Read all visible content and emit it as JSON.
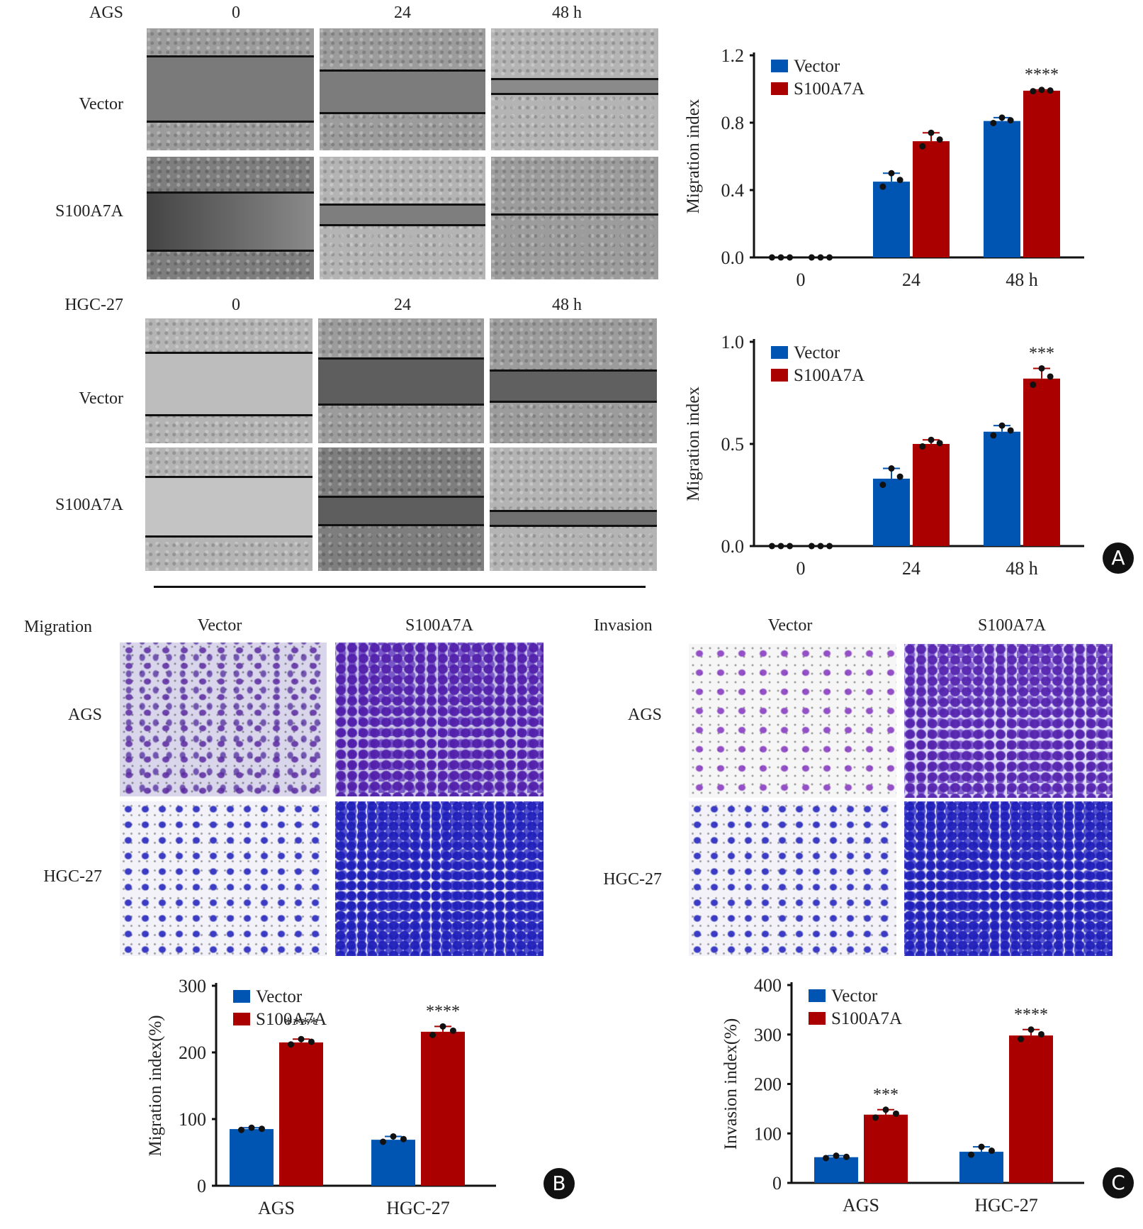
{
  "colors": {
    "vector": "#0055b3",
    "s100a7a": "#aa0000",
    "axis": "#111111",
    "dot": "#111111"
  },
  "panel_a": {
    "badge": "A",
    "ags": {
      "cell_line": "AGS",
      "time_labels": [
        "0",
        "24",
        "48 h"
      ],
      "row_labels": [
        "Vector",
        "S100A7A"
      ]
    },
    "hgc27": {
      "cell_line": "HGC-27",
      "time_labels": [
        "0",
        "24",
        "48 h"
      ],
      "row_labels": [
        "Vector",
        "S100A7A"
      ]
    }
  },
  "panel_b": {
    "badge": "B",
    "title": "Migration",
    "col_labels": [
      "Vector",
      "S100A7A"
    ],
    "row_labels": [
      "AGS",
      "HGC-27"
    ]
  },
  "panel_c": {
    "badge": "C",
    "title": "Invasion",
    "col_labels": [
      "Vector",
      "S100A7A"
    ],
    "row_labels": [
      "AGS",
      "HGC-27"
    ]
  },
  "chart_data": [
    {
      "id": "a_ags",
      "type": "bar",
      "title": "",
      "xlabel": "",
      "ylabel": "Migration index",
      "categories": [
        "0",
        "24",
        "48 h"
      ],
      "ylim": [
        0,
        1.2
      ],
      "yticks": [
        "0.0",
        "0.4",
        "0.8",
        "1.2"
      ],
      "ytick_values": [
        0,
        0.4,
        0.8,
        1.2
      ],
      "legend": [
        "Vector",
        "S100A7A"
      ],
      "legend_position": "top-left",
      "series": [
        {
          "name": "Vector",
          "values": [
            0,
            0.45,
            0.81
          ],
          "errors": [
            0,
            0.05,
            0.02
          ]
        },
        {
          "name": "S100A7A",
          "values": [
            0,
            0.69,
            0.99
          ],
          "errors": [
            0,
            0.05,
            0.005
          ]
        }
      ],
      "annotations": [
        {
          "category": "48 h",
          "series": "S100A7A",
          "text": "****"
        }
      ]
    },
    {
      "id": "a_hgc",
      "type": "bar",
      "title": "",
      "xlabel": "",
      "ylabel": "Migration index",
      "categories": [
        "0",
        "24",
        "48 h"
      ],
      "ylim": [
        0,
        1.0
      ],
      "yticks": [
        "0.0",
        "0.5",
        "1.0"
      ],
      "ytick_values": [
        0,
        0.5,
        1.0
      ],
      "legend": [
        "Vector",
        "S100A7A"
      ],
      "legend_position": "top-left",
      "series": [
        {
          "name": "Vector",
          "values": [
            0,
            0.33,
            0.56
          ],
          "errors": [
            0,
            0.05,
            0.03
          ]
        },
        {
          "name": "S100A7A",
          "values": [
            0,
            0.5,
            0.82
          ],
          "errors": [
            0,
            0.02,
            0.05
          ]
        }
      ],
      "annotations": [
        {
          "category": "48 h",
          "series": "S100A7A",
          "text": "***"
        }
      ]
    },
    {
      "id": "b",
      "type": "bar",
      "title": "",
      "xlabel": "",
      "ylabel": "Migration index(%)",
      "categories": [
        "AGS",
        "HGC-27"
      ],
      "ylim": [
        0,
        300
      ],
      "yticks": [
        "0",
        "100",
        "200",
        "300"
      ],
      "ytick_values": [
        0,
        100,
        200,
        300
      ],
      "legend": [
        "Vector",
        "S100A7A"
      ],
      "legend_position": "top-left",
      "series": [
        {
          "name": "Vector",
          "values": [
            85,
            69
          ],
          "errors": [
            2,
            5
          ]
        },
        {
          "name": "S100A7A",
          "values": [
            215,
            231
          ],
          "errors": [
            5,
            8
          ]
        }
      ],
      "annotations": [
        {
          "category": "AGS",
          "series": "S100A7A",
          "text": "****"
        },
        {
          "category": "HGC-27",
          "series": "S100A7A",
          "text": "****"
        }
      ]
    },
    {
      "id": "c",
      "type": "bar",
      "title": "",
      "xlabel": "",
      "ylabel": "Invasion index(%)",
      "categories": [
        "AGS",
        "HGC-27"
      ],
      "ylim": [
        0,
        400
      ],
      "yticks": [
        "0",
        "100",
        "200",
        "300",
        "400"
      ],
      "ytick_values": [
        0,
        100,
        200,
        300,
        400
      ],
      "legend": [
        "Vector",
        "S100A7A"
      ],
      "legend_position": "top-left",
      "series": [
        {
          "name": "Vector",
          "values": [
            52,
            63
          ],
          "errors": [
            3,
            10
          ]
        },
        {
          "name": "S100A7A",
          "values": [
            138,
            298
          ],
          "errors": [
            10,
            12
          ]
        }
      ],
      "annotations": [
        {
          "category": "AGS",
          "series": "S100A7A",
          "text": "***"
        },
        {
          "category": "HGC-27",
          "series": "S100A7A",
          "text": "****"
        }
      ]
    }
  ]
}
